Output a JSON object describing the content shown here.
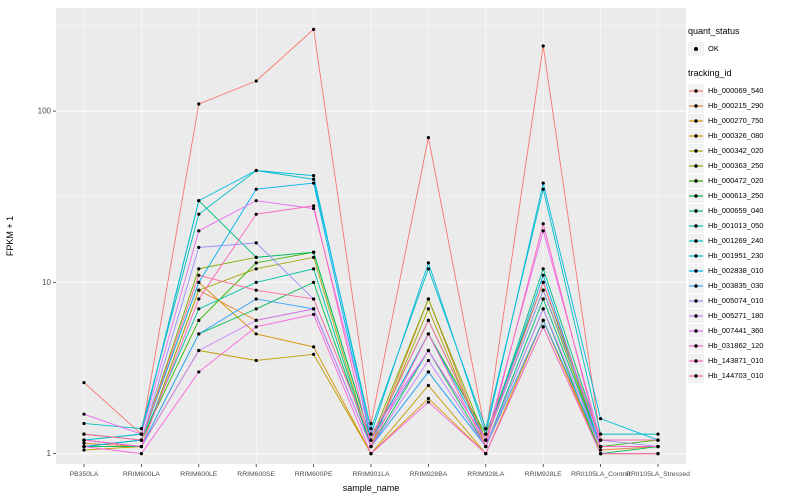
{
  "legend": {
    "quant_status_title": "quant_status",
    "ok_label": "OK",
    "tracking_title": "tracking_id"
  },
  "chart_data": {
    "type": "line",
    "title": "",
    "xlabel": "sample_name",
    "ylabel": "FPKM + 1",
    "y_scale": "log10",
    "y_ticks": [
      1,
      10,
      100
    ],
    "ylim": [
      0.87,
      400
    ],
    "grid": true,
    "legend_position": "right",
    "panel_background": "#EBEBEB",
    "point_color": "#000000",
    "categories": [
      "PB350LA",
      "RRIM600LA",
      "RRIM600LE",
      "RRIM600SE",
      "RRIM600PE",
      "RRIM901LA",
      "RRIM928BA",
      "RRIM928LA",
      "RRIM928LE",
      "RRII105LA_Control",
      "RRII105LA_Stressed"
    ],
    "series": [
      {
        "name": "Hb_000069_540",
        "color": "#F8766D",
        "values": [
          2.6,
          1.3,
          110,
          150,
          300,
          1.5,
          70,
          1.3,
          240,
          1.2,
          1.2
        ]
      },
      {
        "name": "Hb_000215_290",
        "color": "#EA8331",
        "values": [
          1.15,
          1.1,
          9,
          6,
          7,
          1.1,
          8,
          1.1,
          6,
          1.05,
          1.1
        ]
      },
      {
        "name": "Hb_000270_750",
        "color": "#D89000",
        "values": [
          1.1,
          1.2,
          10,
          5,
          4.2,
          1.0,
          2.1,
          1.0,
          6,
          1.0,
          1.0
        ]
      },
      {
        "name": "Hb_000326_080",
        "color": "#C09B00",
        "values": [
          1.05,
          1.1,
          4,
          3.5,
          3.8,
          1.0,
          2.5,
          1.0,
          5.5,
          1.0,
          1.0
        ]
      },
      {
        "name": "Hb_000342_020",
        "color": "#A3A500",
        "values": [
          1.2,
          1.1,
          9,
          12,
          14,
          1.1,
          7,
          1.1,
          8,
          1.1,
          1.1
        ]
      },
      {
        "name": "Hb_000363_250",
        "color": "#7CAE00",
        "values": [
          1.1,
          1.2,
          12,
          14,
          15,
          1.2,
          8,
          1.2,
          9,
          1.1,
          1.1
        ]
      },
      {
        "name": "Hb_000472_020",
        "color": "#39B600",
        "values": [
          1.3,
          1.2,
          6,
          13,
          15,
          1.2,
          5,
          1.3,
          10,
          1.1,
          1.2
        ]
      },
      {
        "name": "Hb_000613_250",
        "color": "#00BB4E",
        "values": [
          1.1,
          1.1,
          5,
          7,
          10,
          1.1,
          4,
          1.1,
          7,
          1.0,
          1.1
        ]
      },
      {
        "name": "Hb_000659_040",
        "color": "#00BF7D",
        "values": [
          1.2,
          1.3,
          30,
          14,
          15,
          1.2,
          6,
          1.2,
          12,
          1.2,
          1.2
        ]
      },
      {
        "name": "Hb_001013_050",
        "color": "#00C1A3",
        "values": [
          1.1,
          1.2,
          7,
          10,
          12,
          1.1,
          3,
          1.1,
          8,
          1.1,
          1.1
        ]
      },
      {
        "name": "Hb_001269_240",
        "color": "#00BFC4",
        "values": [
          1.5,
          1.4,
          25,
          45,
          40,
          1.4,
          12,
          1.4,
          35,
          1.3,
          1.3
        ]
      },
      {
        "name": "Hb_001951_230",
        "color": "#00BAE0",
        "values": [
          1.2,
          1.3,
          30,
          45,
          42,
          1.3,
          13,
          1.3,
          38,
          1.6,
          1.2
        ]
      },
      {
        "name": "Hb_002838_010",
        "color": "#00B0F6",
        "values": [
          1.1,
          1.2,
          10,
          35,
          38,
          1.2,
          5,
          1.2,
          11,
          1.1,
          1.1
        ]
      },
      {
        "name": "Hb_003835_030",
        "color": "#35A2FF",
        "values": [
          1.2,
          1.1,
          5,
          8,
          7,
          1.1,
          3,
          1.1,
          6,
          1.1,
          1.1
        ]
      },
      {
        "name": "Hb_005074_010",
        "color": "#9590FF",
        "values": [
          1.3,
          1.2,
          16,
          17,
          8,
          1.2,
          4,
          1.2,
          9,
          1.2,
          1.1
        ]
      },
      {
        "name": "Hb_005271_180",
        "color": "#C77CFF",
        "values": [
          1.2,
          1.1,
          4,
          6,
          7,
          1.1,
          3.5,
          1.1,
          7,
          1.1,
          1.1
        ]
      },
      {
        "name": "Hb_007441_360",
        "color": "#E76BF3",
        "values": [
          1.7,
          1.3,
          20,
          30,
          27,
          1.3,
          4,
          1.2,
          20,
          1.2,
          1.2
        ]
      },
      {
        "name": "Hb_031862_120",
        "color": "#FA62DB",
        "values": [
          1.1,
          1.0,
          3,
          5.5,
          6.5,
          1.0,
          2,
          1.0,
          5.5,
          1.0,
          1.0
        ]
      },
      {
        "name": "Hb_143871_010",
        "color": "#FF62BC",
        "values": [
          1.2,
          1.1,
          8,
          25,
          28,
          1.1,
          5,
          1.1,
          22,
          1.1,
          1.1
        ]
      },
      {
        "name": "Hb_144703_010",
        "color": "#FF6A98",
        "values": [
          1.3,
          1.2,
          11,
          9,
          8,
          1.2,
          6,
          1.2,
          10,
          1.2,
          1.2
        ]
      }
    ]
  }
}
